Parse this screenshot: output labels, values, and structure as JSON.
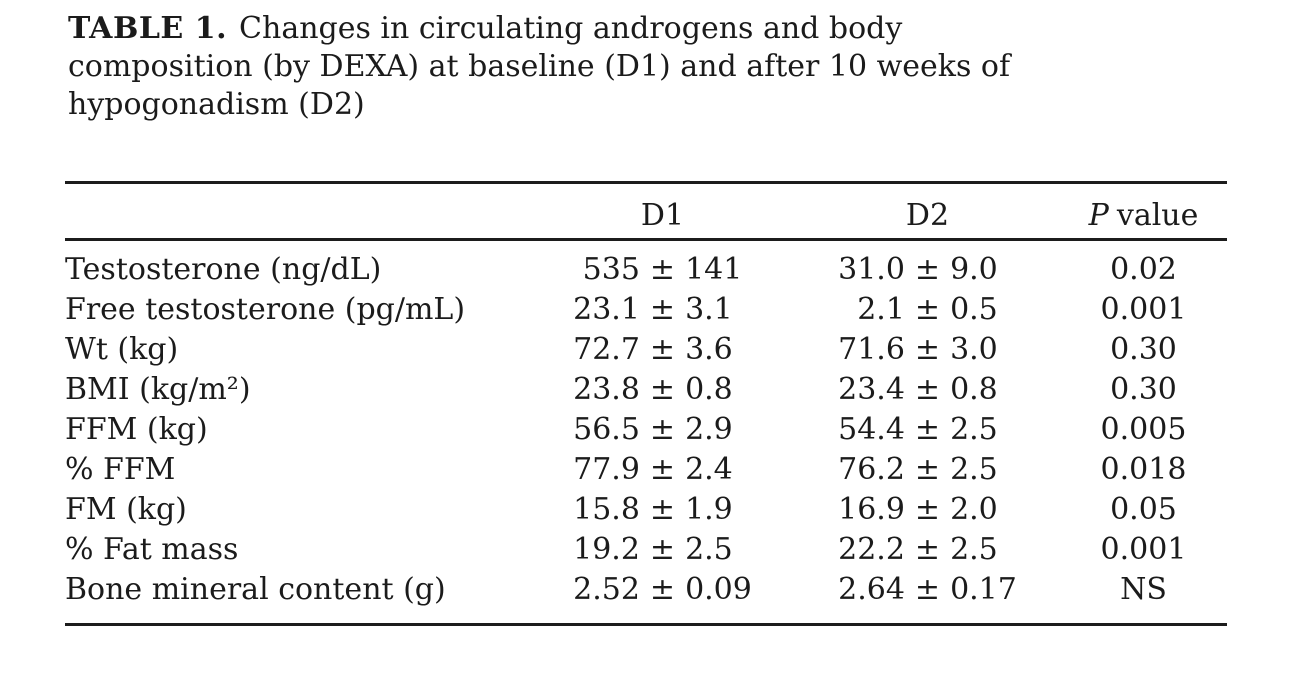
{
  "caption": {
    "label": "TABLE 1.",
    "line1": "Changes in circulating androgens and body",
    "line2": "composition (by DEXA) at baseline (D1) and after 10 weeks of",
    "line3": "hypogonadism (D2)"
  },
  "table": {
    "pm_symbol": "±",
    "columns": {
      "d1": "D1",
      "d2": "D2",
      "p_italic": "P",
      "p_rest": "value"
    },
    "rows": [
      {
        "label": "Testosterone (ng/dL)",
        "d1_mean": "535",
        "d1_sd": "141",
        "d2_mean": "31.0",
        "d2_sd": "9.0",
        "p": "0.02"
      },
      {
        "label": "Free testosterone (pg/mL)",
        "d1_mean": "23.1",
        "d1_sd": "3.1",
        "d2_mean": "2.1",
        "d2_sd": "0.5",
        "p": "0.001"
      },
      {
        "label": "Wt (kg)",
        "d1_mean": "72.7",
        "d1_sd": "3.6",
        "d2_mean": "71.6",
        "d2_sd": "3.0",
        "p": "0.30"
      },
      {
        "label": "BMI (kg/m²)",
        "d1_mean": "23.8",
        "d1_sd": "0.8",
        "d2_mean": "23.4",
        "d2_sd": "0.8",
        "p": "0.30"
      },
      {
        "label": "FFM (kg)",
        "d1_mean": "56.5",
        "d1_sd": "2.9",
        "d2_mean": "54.4",
        "d2_sd": "2.5",
        "p": "0.005"
      },
      {
        "label": "% FFM",
        "d1_mean": "77.9",
        "d1_sd": "2.4",
        "d2_mean": "76.2",
        "d2_sd": "2.5",
        "p": "0.018"
      },
      {
        "label": "FM (kg)",
        "d1_mean": "15.8",
        "d1_sd": "1.9",
        "d2_mean": "16.9",
        "d2_sd": "2.0",
        "p": "0.05"
      },
      {
        "label": "% Fat mass",
        "d1_mean": "19.2",
        "d1_sd": "2.5",
        "d2_mean": "22.2",
        "d2_sd": "2.5",
        "p": "0.001"
      },
      {
        "label": "Bone mineral content (g)",
        "d1_mean": "2.52",
        "d1_sd": "0.09",
        "d2_mean": "2.64",
        "d2_sd": "0.17",
        "p": "NS"
      }
    ]
  },
  "colors": {
    "text": "#1b1b1b",
    "rule": "#1c1c1c",
    "background": "#ffffff"
  }
}
